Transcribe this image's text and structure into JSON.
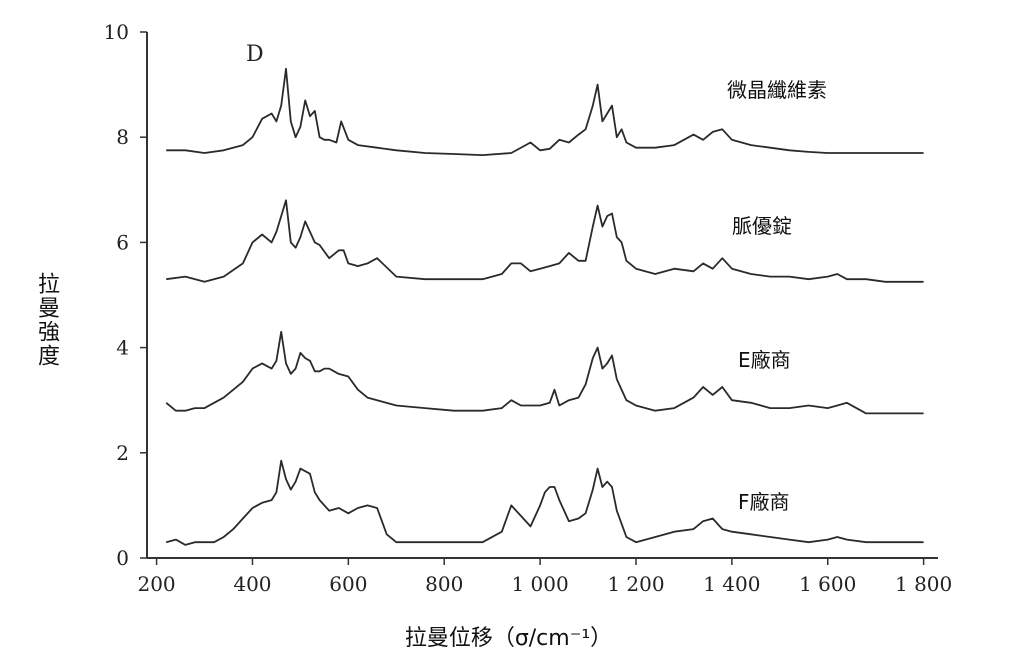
{
  "chart_data": {
    "type": "line",
    "xlabel": "拉曼位移（σ/cm⁻¹）",
    "ylabel": "拉曼強度",
    "annotation": "D",
    "xlim": [
      180,
      1830
    ],
    "ylim": [
      0,
      10
    ],
    "x_tick_labels": [
      "200",
      "400",
      "600",
      "800",
      "1 000",
      "1 200",
      "1 400",
      "1 600",
      "1 800"
    ],
    "y_tick_labels": [
      "0",
      "2",
      "4",
      "6",
      "8",
      "10"
    ],
    "x_tick_values": [
      200,
      400,
      600,
      800,
      1000,
      1200,
      1400,
      1600,
      1800
    ],
    "y_tick_values": [
      0,
      2,
      4,
      6,
      8,
      10
    ],
    "series": [
      {
        "name": "微晶纖維素",
        "x": [
          220,
          260,
          300,
          340,
          380,
          400,
          420,
          440,
          450,
          460,
          470,
          480,
          490,
          500,
          510,
          520,
          530,
          540,
          550,
          560,
          575,
          585,
          600,
          620,
          660,
          700,
          760,
          820,
          880,
          940,
          980,
          1000,
          1020,
          1040,
          1060,
          1080,
          1095,
          1110,
          1120,
          1130,
          1140,
          1150,
          1160,
          1170,
          1180,
          1200,
          1240,
          1280,
          1320,
          1340,
          1360,
          1380,
          1400,
          1440,
          1480,
          1520,
          1560,
          1600,
          1640,
          1680,
          1720,
          1760,
          1800
        ],
        "y": [
          7.75,
          7.75,
          7.7,
          7.75,
          7.85,
          8.0,
          8.35,
          8.45,
          8.3,
          8.6,
          9.3,
          8.3,
          8.0,
          8.2,
          8.7,
          8.4,
          8.5,
          8.0,
          7.95,
          7.95,
          7.9,
          8.3,
          7.95,
          7.85,
          7.8,
          7.75,
          7.7,
          7.68,
          7.66,
          7.7,
          7.9,
          7.75,
          7.78,
          7.95,
          7.9,
          8.05,
          8.15,
          8.6,
          9.0,
          8.3,
          8.45,
          8.6,
          8.0,
          8.15,
          7.9,
          7.8,
          7.8,
          7.85,
          8.05,
          7.95,
          8.1,
          8.15,
          7.95,
          7.85,
          7.8,
          7.75,
          7.72,
          7.7,
          7.7,
          7.7,
          7.7,
          7.7,
          7.7
        ]
      },
      {
        "name": "脈優錠",
        "x": [
          220,
          260,
          300,
          340,
          380,
          400,
          420,
          440,
          450,
          460,
          470,
          480,
          490,
          500,
          510,
          520,
          530,
          540,
          560,
          580,
          590,
          600,
          620,
          640,
          660,
          700,
          760,
          820,
          880,
          920,
          940,
          960,
          980,
          1000,
          1020,
          1040,
          1060,
          1080,
          1095,
          1110,
          1120,
          1130,
          1140,
          1150,
          1160,
          1170,
          1180,
          1200,
          1240,
          1280,
          1320,
          1340,
          1360,
          1380,
          1400,
          1440,
          1480,
          1520,
          1560,
          1600,
          1620,
          1640,
          1680,
          1720,
          1760,
          1800
        ],
        "y": [
          5.3,
          5.35,
          5.25,
          5.35,
          5.6,
          6.0,
          6.15,
          6.0,
          6.2,
          6.5,
          6.8,
          6.0,
          5.9,
          6.1,
          6.4,
          6.2,
          6.0,
          5.95,
          5.7,
          5.85,
          5.85,
          5.6,
          5.55,
          5.6,
          5.7,
          5.35,
          5.3,
          5.3,
          5.3,
          5.4,
          5.6,
          5.6,
          5.45,
          5.5,
          5.55,
          5.6,
          5.8,
          5.65,
          5.65,
          6.3,
          6.7,
          6.3,
          6.5,
          6.55,
          6.1,
          6.0,
          5.65,
          5.5,
          5.4,
          5.5,
          5.45,
          5.6,
          5.5,
          5.7,
          5.5,
          5.4,
          5.35,
          5.35,
          5.3,
          5.35,
          5.4,
          5.3,
          5.3,
          5.25,
          5.25,
          5.25
        ]
      },
      {
        "name": "E廠商",
        "x": [
          220,
          240,
          260,
          280,
          300,
          340,
          380,
          400,
          420,
          440,
          450,
          460,
          470,
          480,
          490,
          500,
          510,
          520,
          530,
          540,
          550,
          560,
          570,
          580,
          600,
          620,
          640,
          660,
          700,
          760,
          820,
          880,
          920,
          940,
          960,
          980,
          1000,
          1020,
          1030,
          1040,
          1060,
          1080,
          1095,
          1110,
          1120,
          1130,
          1140,
          1150,
          1160,
          1170,
          1180,
          1200,
          1240,
          1280,
          1320,
          1340,
          1360,
          1380,
          1400,
          1440,
          1480,
          1520,
          1560,
          1600,
          1620,
          1640,
          1680,
          1720,
          1760,
          1800
        ],
        "y": [
          2.95,
          2.8,
          2.8,
          2.85,
          2.85,
          3.05,
          3.35,
          3.6,
          3.7,
          3.6,
          3.75,
          4.3,
          3.7,
          3.5,
          3.6,
          3.9,
          3.8,
          3.75,
          3.55,
          3.55,
          3.6,
          3.6,
          3.55,
          3.5,
          3.45,
          3.2,
          3.05,
          3.0,
          2.9,
          2.85,
          2.8,
          2.8,
          2.85,
          3.0,
          2.9,
          2.9,
          2.9,
          2.95,
          3.2,
          2.9,
          3.0,
          3.05,
          3.3,
          3.8,
          4.0,
          3.6,
          3.7,
          3.85,
          3.4,
          3.2,
          3.0,
          2.9,
          2.8,
          2.85,
          3.05,
          3.25,
          3.1,
          3.25,
          3.0,
          2.95,
          2.85,
          2.85,
          2.9,
          2.85,
          2.9,
          2.95,
          2.75,
          2.75,
          2.75,
          2.75
        ]
      },
      {
        "name": "F廠商",
        "x": [
          220,
          240,
          260,
          280,
          300,
          320,
          340,
          360,
          380,
          400,
          420,
          440,
          450,
          460,
          470,
          480,
          490,
          500,
          510,
          520,
          530,
          540,
          560,
          580,
          600,
          620,
          640,
          660,
          680,
          700,
          760,
          820,
          880,
          920,
          940,
          960,
          980,
          1000,
          1010,
          1020,
          1030,
          1040,
          1060,
          1080,
          1095,
          1110,
          1120,
          1130,
          1140,
          1150,
          1160,
          1170,
          1180,
          1200,
          1240,
          1280,
          1320,
          1340,
          1360,
          1380,
          1400,
          1440,
          1480,
          1520,
          1560,
          1600,
          1620,
          1640,
          1680,
          1720,
          1760,
          1800
        ],
        "y": [
          0.3,
          0.35,
          0.25,
          0.3,
          0.3,
          0.3,
          0.4,
          0.55,
          0.75,
          0.95,
          1.05,
          1.1,
          1.25,
          1.85,
          1.5,
          1.3,
          1.45,
          1.7,
          1.65,
          1.6,
          1.25,
          1.1,
          0.9,
          0.95,
          0.85,
          0.95,
          1.0,
          0.95,
          0.45,
          0.3,
          0.3,
          0.3,
          0.3,
          0.5,
          1.0,
          0.8,
          0.6,
          1.0,
          1.25,
          1.35,
          1.35,
          1.1,
          0.7,
          0.75,
          0.85,
          1.3,
          1.7,
          1.35,
          1.45,
          1.35,
          0.9,
          0.65,
          0.4,
          0.3,
          0.4,
          0.5,
          0.55,
          0.7,
          0.75,
          0.55,
          0.5,
          0.45,
          0.4,
          0.35,
          0.3,
          0.35,
          0.4,
          0.35,
          0.3,
          0.3,
          0.3,
          0.3
        ]
      }
    ]
  }
}
